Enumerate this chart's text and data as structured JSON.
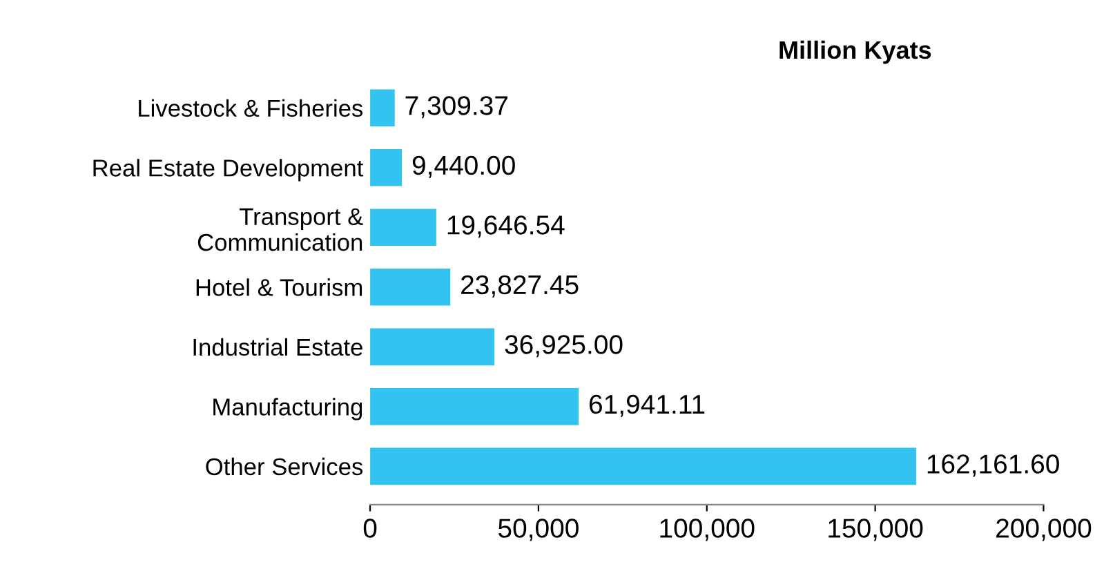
{
  "chart_data": {
    "type": "bar",
    "orientation": "horizontal",
    "title": "Million Kyats",
    "categories": [
      "Livestock & Fisheries",
      "Real Estate Development",
      "Transport &\nCommunication",
      "Hotel & Tourism",
      "Industrial Estate",
      "Manufacturing",
      "Other Services"
    ],
    "values": [
      7309.37,
      9440.0,
      19646.54,
      23827.45,
      36925.0,
      61941.11,
      162161.6
    ],
    "value_labels": [
      "7,309.37",
      "9,440.00",
      "19,646.54",
      "23,827.45",
      "36,925.00",
      "61,941.11",
      "162,161.60"
    ],
    "color": "#33c3f0",
    "xlim": [
      0,
      200000
    ],
    "xticks": [
      0,
      {
        "value": 50000,
        "label": "50,000"
      },
      {
        "value": 100000,
        "label": "100,000"
      },
      {
        "value": 150000,
        "label": "150,000"
      },
      {
        "value": 200000,
        "label": "200,000"
      }
    ],
    "grid": false
  }
}
